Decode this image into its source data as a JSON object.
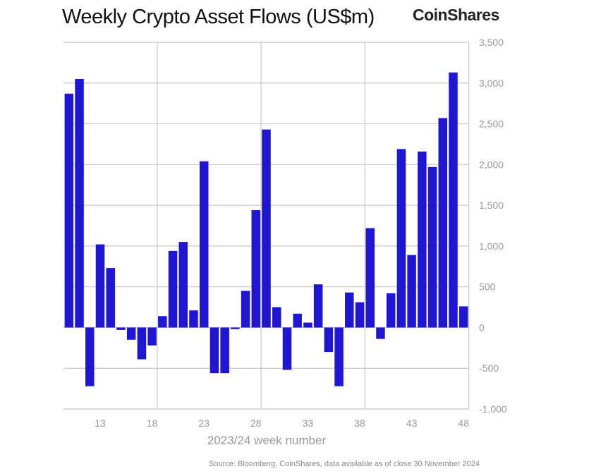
{
  "chart_data": {
    "type": "bar",
    "title": "Weekly Crypto Asset Flows (US$m)",
    "xlabel": "2023/24 week number",
    "ylabel": "",
    "x": [
      10,
      11,
      12,
      13,
      14,
      15,
      16,
      17,
      18,
      19,
      20,
      21,
      22,
      23,
      24,
      25,
      26,
      27,
      28,
      29,
      30,
      31,
      32,
      33,
      34,
      35,
      36,
      37,
      38,
      39,
      40,
      41,
      42,
      43,
      44,
      45,
      46,
      47,
      48
    ],
    "values": [
      2870,
      3050,
      -720,
      1020,
      730,
      -30,
      -150,
      -390,
      -220,
      140,
      940,
      1050,
      210,
      2040,
      -560,
      -560,
      -20,
      450,
      1440,
      2430,
      250,
      -520,
      170,
      60,
      530,
      -300,
      -720,
      430,
      310,
      1220,
      -140,
      420,
      2190,
      890,
      2160,
      1970,
      2570,
      3130,
      260
    ],
    "ylim": [
      -1000,
      3500
    ],
    "yticks": [
      -1000,
      -500,
      0,
      500,
      1000,
      1500,
      2000,
      2500,
      3000,
      3500
    ],
    "ytick_labels": [
      "-1,000",
      "-500",
      "0",
      "500",
      "1,000",
      "1,500",
      "2,000",
      "2,500",
      "3,000",
      "3,500"
    ],
    "xticks": [
      13,
      18,
      23,
      28,
      33,
      38,
      43,
      48
    ],
    "xtick_labels": [
      "13",
      "18",
      "23",
      "28",
      "33",
      "38",
      "43",
      "48"
    ],
    "grid": true,
    "y_axis_side": "right",
    "bar_color": "#1f16d4"
  },
  "brand": "CoinShares",
  "source": "Source: Bloomberg, CoinShares, data available as of close 30 November 2024"
}
